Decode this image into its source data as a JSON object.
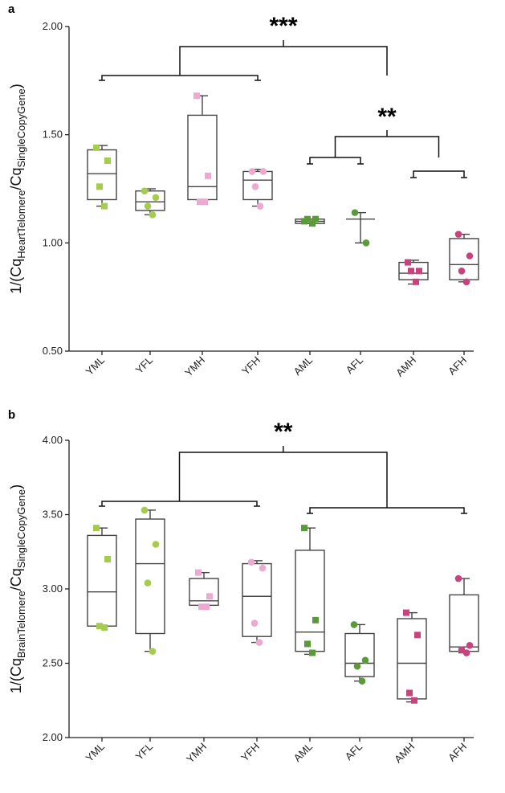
{
  "colors": {
    "young_light": "#a6cc4e",
    "aged_light": "#5a9a3a",
    "young_high": "#ecaad0",
    "aged_high": "#c8437e"
  },
  "chart_data": [
    {
      "panel": "a",
      "type": "box",
      "ylabel": {
        "main": "1/(Cq",
        "sub1": "HeartTelomere",
        "mid": "/Cq",
        "sub2": "SingleCopyGene",
        "end": ")"
      },
      "ylim": [
        0.5,
        2.0
      ],
      "yticks": [
        0.5,
        1.0,
        1.5,
        2.0
      ],
      "ytick_labels": [
        "0.50",
        "1.00",
        "1.50",
        "2.00"
      ],
      "categories": [
        "YML",
        "YFL",
        "YMH",
        "YFH",
        "AML",
        "AFL",
        "AMH",
        "AFH"
      ],
      "groups": [
        {
          "label": "YML",
          "color": "young_light",
          "marker": "square",
          "min": 1.17,
          "q1": 1.2,
          "median": 1.32,
          "q3": 1.43,
          "max": 1.45,
          "points": [
            1.44,
            1.38,
            1.26,
            1.17
          ]
        },
        {
          "label": "YFL",
          "color": "young_light",
          "marker": "circle",
          "min": 1.13,
          "q1": 1.15,
          "median": 1.19,
          "q3": 1.24,
          "max": 1.25,
          "points": [
            1.24,
            1.21,
            1.17,
            1.13
          ]
        },
        {
          "label": "YMH",
          "color": "young_high",
          "marker": "square",
          "min": 1.19,
          "q1": 1.2,
          "median": 1.26,
          "q3": 1.59,
          "max": 1.68,
          "points": [
            1.68,
            1.31,
            1.19,
            1.19
          ]
        },
        {
          "label": "YFH",
          "color": "young_high",
          "marker": "circle",
          "min": 1.17,
          "q1": 1.2,
          "median": 1.29,
          "q3": 1.33,
          "max": 1.34,
          "points": [
            1.33,
            1.33,
            1.26,
            1.17
          ]
        },
        {
          "label": "AML",
          "color": "aged_light",
          "marker": "square",
          "min": 1.09,
          "q1": 1.09,
          "median": 1.1,
          "q3": 1.11,
          "max": 1.11,
          "points": [
            1.1,
            1.11,
            1.11,
            1.09
          ]
        },
        {
          "label": "AFL",
          "color": "aged_light",
          "marker": "circle",
          "min": 1.0,
          "q1": 1.0,
          "median": 1.11,
          "q3": 1.14,
          "max": 1.14,
          "points": [
            1.14,
            1.0
          ],
          "no_box": true
        },
        {
          "label": "AMH",
          "color": "aged_high",
          "marker": "square",
          "min": 0.81,
          "q1": 0.83,
          "median": 0.86,
          "q3": 0.91,
          "max": 0.92,
          "points": [
            0.91,
            0.87,
            0.87,
            0.82
          ]
        },
        {
          "label": "AFH",
          "color": "aged_high",
          "marker": "circle",
          "min": 0.82,
          "q1": 0.83,
          "median": 0.9,
          "q3": 1.02,
          "max": 1.04,
          "points": [
            1.04,
            0.94,
            0.87,
            0.82
          ]
        }
      ],
      "significance": [
        {
          "text": "***",
          "spans": [
            [
              0,
              3
            ],
            [
              4,
              7
            ]
          ],
          "level": "top"
        },
        {
          "text": "**",
          "spans": [
            [
              4,
              5
            ],
            [
              6,
              7
            ]
          ],
          "level": "sub"
        }
      ],
      "grid": false,
      "legend": "none"
    },
    {
      "panel": "b",
      "type": "box",
      "ylabel": {
        "main": "1/(Cq",
        "sub1": "BrainTelomere",
        "mid": "/Cq",
        "sub2": "SingleCopyGene",
        "end": ")"
      },
      "ylim": [
        2.0,
        4.0
      ],
      "yticks": [
        2.0,
        2.5,
        3.0,
        3.5,
        4.0
      ],
      "ytick_labels": [
        "2.00",
        "2.50",
        "3.00",
        "3.50",
        "4.00"
      ],
      "categories": [
        "YML",
        "YFL",
        "YMH",
        "YFH",
        "AML",
        "AFL",
        "AMH",
        "AFH"
      ],
      "groups": [
        {
          "label": "YML",
          "color": "young_light",
          "marker": "square",
          "min": 2.74,
          "q1": 2.75,
          "median": 2.98,
          "q3": 3.36,
          "max": 3.41,
          "points": [
            3.41,
            3.2,
            2.75,
            2.74
          ]
        },
        {
          "label": "YFL",
          "color": "young_light",
          "marker": "circle",
          "min": 2.58,
          "q1": 2.7,
          "median": 3.17,
          "q3": 3.47,
          "max": 3.53,
          "points": [
            3.53,
            3.3,
            3.04,
            2.58
          ]
        },
        {
          "label": "YMH",
          "color": "young_high",
          "marker": "square",
          "min": 2.88,
          "q1": 2.89,
          "median": 2.92,
          "q3": 3.07,
          "max": 3.11,
          "points": [
            3.11,
            2.95,
            2.88,
            2.88
          ]
        },
        {
          "label": "YFH",
          "color": "young_high",
          "marker": "circle",
          "min": 2.64,
          "q1": 2.68,
          "median": 2.95,
          "q3": 3.17,
          "max": 3.19,
          "points": [
            3.18,
            3.14,
            2.77,
            2.64
          ]
        },
        {
          "label": "AML",
          "color": "aged_light",
          "marker": "square",
          "min": 2.56,
          "q1": 2.58,
          "median": 2.71,
          "q3": 3.26,
          "max": 3.41,
          "points": [
            3.41,
            2.79,
            2.63,
            2.57
          ]
        },
        {
          "label": "AFL",
          "color": "aged_light",
          "marker": "circle",
          "min": 2.38,
          "q1": 2.41,
          "median": 2.5,
          "q3": 2.7,
          "max": 2.76,
          "points": [
            2.76,
            2.52,
            2.48,
            2.38
          ]
        },
        {
          "label": "AMH",
          "color": "aged_high",
          "marker": "square",
          "min": 2.24,
          "q1": 2.26,
          "median": 2.5,
          "q3": 2.8,
          "max": 2.84,
          "points": [
            2.84,
            2.69,
            2.3,
            2.25
          ]
        },
        {
          "label": "AFH",
          "color": "aged_high",
          "marker": "circle",
          "min": 2.57,
          "q1": 2.58,
          "median": 2.61,
          "q3": 2.96,
          "max": 3.07,
          "points": [
            3.07,
            2.62,
            2.59,
            2.57
          ]
        }
      ],
      "significance": [
        {
          "text": "**",
          "spans": [
            [
              0,
              3
            ],
            [
              4,
              7
            ]
          ],
          "level": "top"
        }
      ],
      "grid": false,
      "legend": "none"
    }
  ]
}
